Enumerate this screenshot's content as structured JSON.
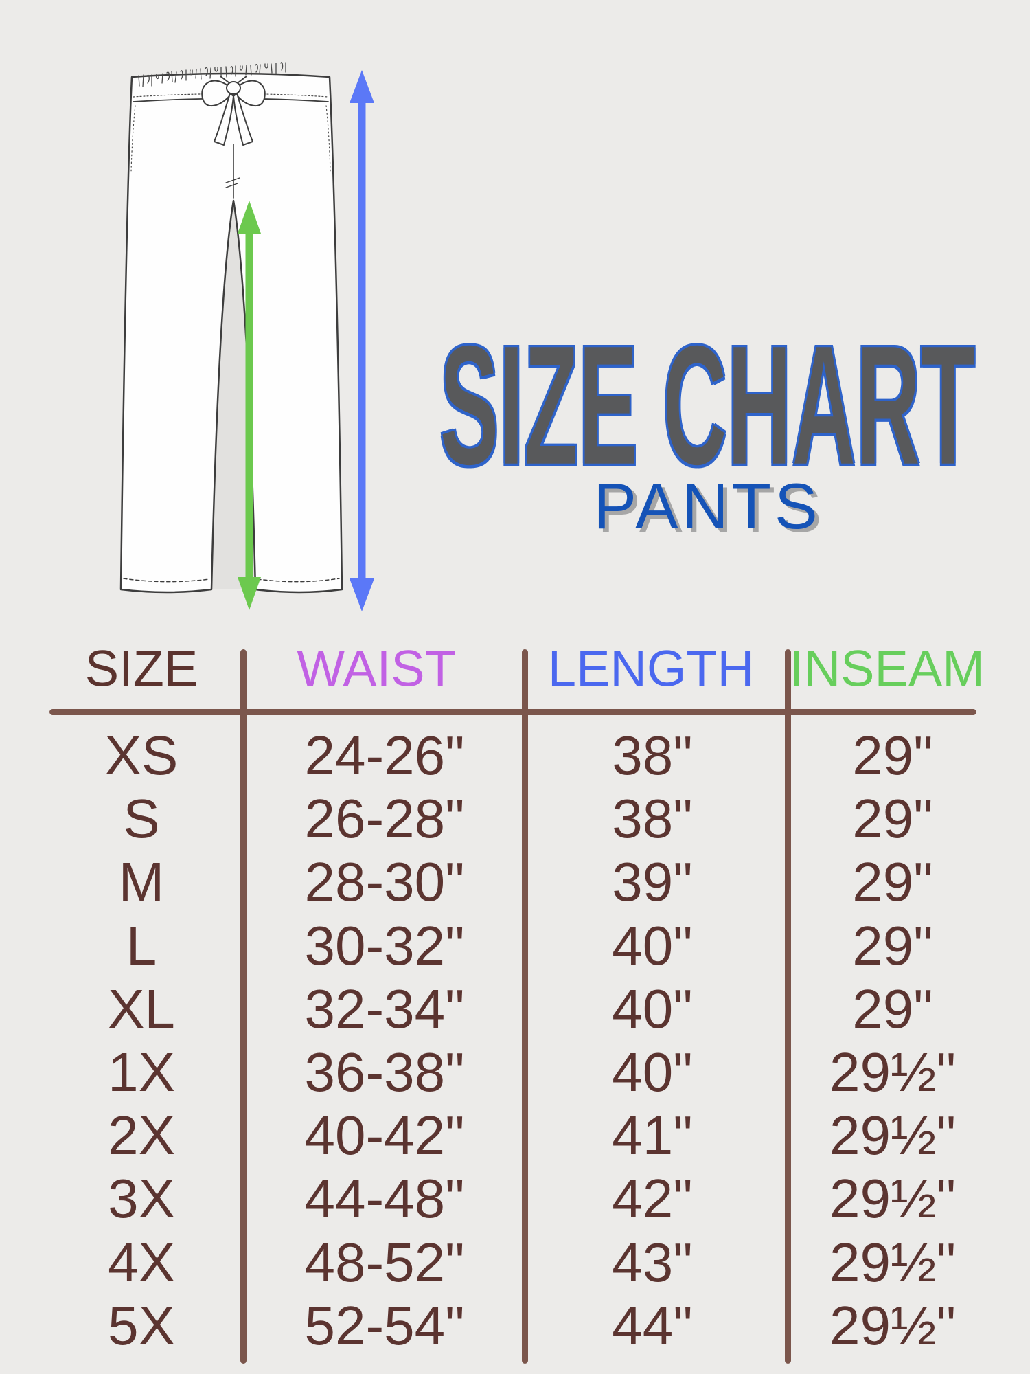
{
  "page": {
    "background": "#ECEBE9"
  },
  "header": {
    "title": "SIZE CHART",
    "subtitle": "PANTS",
    "title_fill": "#58595B",
    "title_outline": "#2E63CA",
    "subtitle_color": "#1553B7",
    "subtitle_shadow": "#A6A6A6"
  },
  "illustration": {
    "garment": "drawstring-pants-line-drawing",
    "length_arrow_color": "#5B78F7",
    "inseam_arrow_color": "#6CC94E",
    "outline_color": "#3D3D3D",
    "fabric_fill": "#FEFEFE"
  },
  "table": {
    "line_color": "#7B564C",
    "text_color": "#5B3430",
    "header_colors": [
      "#5B332E",
      "#C161E4",
      "#4B68EF",
      "#67CE5C"
    ]
  },
  "chart_data": {
    "type": "table",
    "title": "SIZE CHART",
    "subtitle": "PANTS",
    "columns": [
      "SIZE",
      "WAIST",
      "LENGTH",
      "INSEAM"
    ],
    "rows": [
      [
        "XS",
        "24-26\"",
        "38\"",
        "29\""
      ],
      [
        "S",
        "26-28\"",
        "38\"",
        "29\""
      ],
      [
        "M",
        "28-30\"",
        "39\"",
        "29\""
      ],
      [
        "L",
        "30-32\"",
        "40\"",
        "29\""
      ],
      [
        "XL",
        "32-34\"",
        "40\"",
        "29\""
      ],
      [
        "1X",
        "36-38\"",
        "40\"",
        "29½\""
      ],
      [
        "2X",
        "40-42\"",
        "41\"",
        "29½\""
      ],
      [
        "3X",
        "44-48\"",
        "42\"",
        "29½\""
      ],
      [
        "4X",
        "48-52\"",
        "43\"",
        "29½\""
      ],
      [
        "5X",
        "52-54\"",
        "44\"",
        "29½\""
      ]
    ]
  }
}
